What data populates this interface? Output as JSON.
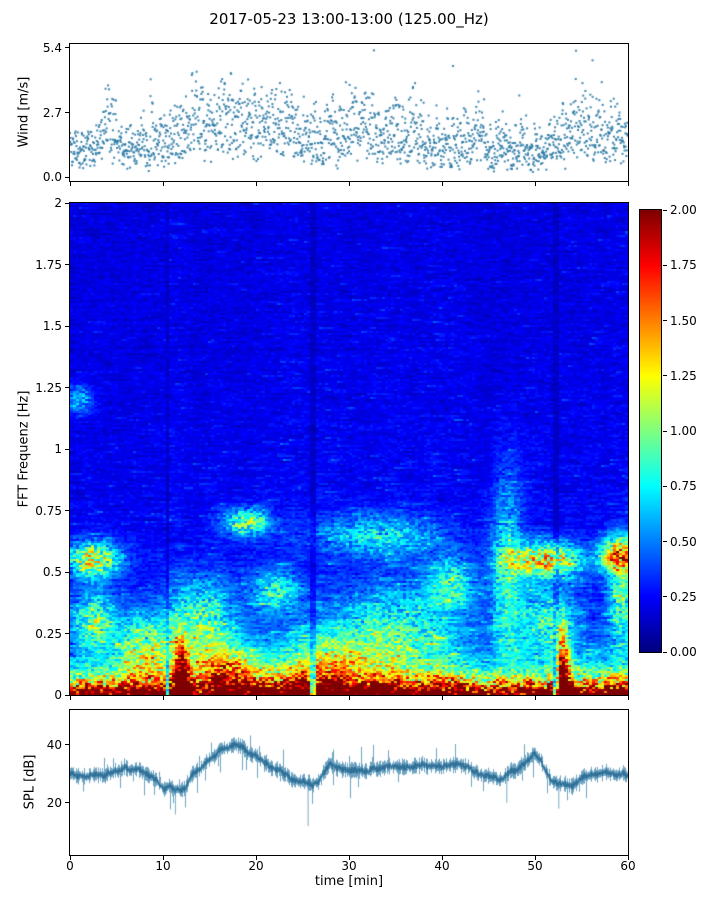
{
  "title": "2017-05-23 13:00-13:00 (125.00_Hz)",
  "xlabel": "time [min]",
  "colorbar": {
    "colormap": "jet",
    "vmin": 0,
    "vmax": 2,
    "tick_values": [
      2.0,
      1.75,
      1.5,
      1.25,
      1.0,
      0.75,
      0.5,
      0.25,
      0.0
    ],
    "tick_labels": [
      "2.00",
      "1.75",
      "1.50",
      "1.25",
      "1.00",
      "0.75",
      "0.50",
      "0.25",
      "0.00"
    ]
  },
  "chart_data": [
    {
      "id": "wind",
      "type": "scatter",
      "ylabel": "Wind [m/s]",
      "xlim": [
        0,
        60
      ],
      "ylim": [
        -0.15,
        5.55
      ],
      "ytick_values": [
        0.0,
        2.7,
        5.4
      ],
      "ytick_labels": [
        "0.0",
        "2.7",
        "5.4"
      ],
      "marker_color": "#2b7aa5",
      "n_points": 1900,
      "seed": 42,
      "envelope_step_min": 5,
      "envelope_mean_mps": [
        1.3,
        1.1,
        1.6,
        2.4,
        2.2,
        1.6,
        1.7,
        2.0,
        1.5,
        1.4,
        1.2,
        2.0,
        1.8
      ],
      "bursts": [
        {
          "t": 4.2,
          "tw": 0.6,
          "amp": 2.4
        },
        {
          "t": 13.5,
          "tw": 0.5,
          "amp": 1.5
        },
        {
          "t": 23.0,
          "tw": 0.8,
          "amp": 1.7
        },
        {
          "t": 31.5,
          "tw": 0.6,
          "amp": 1.5
        },
        {
          "t": 44.0,
          "tw": 0.5,
          "amp": 1.2
        }
      ]
    },
    {
      "id": "spectrogram",
      "type": "heatmap",
      "ylabel": "FFT Frequenz [Hz]",
      "xlim": [
        0,
        60
      ],
      "ylim": [
        0,
        2
      ],
      "ytick_values": [
        0,
        0.25,
        0.5,
        0.75,
        1,
        1.25,
        1.5,
        1.75,
        2
      ],
      "ytick_labels": [
        "0",
        "0.25",
        "0.5",
        "0.75",
        "1",
        "1.25",
        "1.5",
        "1.75",
        "2"
      ],
      "colormap": "jet",
      "vmin": 0,
      "vmax": 2,
      "seed": 7,
      "background_level": 0.15,
      "low_band_amp": 2.4,
      "low_band_scale_hz": 0.06,
      "dark_columns": [
        10.5,
        26.2,
        52.3
      ],
      "pattern_notes": "mostly deep blue background 0.1-0.3; strong red/orange band below 0.08 Hz across all times; cyan-green patches mainly below 0.7 Hz",
      "events": [
        {
          "t": 2.5,
          "f": 0.55,
          "tw": 2.0,
          "fw": 0.05,
          "amp": 1.0
        },
        {
          "t": 2.5,
          "f": 0.3,
          "tw": 1.6,
          "fw": 0.08,
          "amp": 0.7
        },
        {
          "t": 1.0,
          "f": 1.2,
          "tw": 1.0,
          "fw": 0.04,
          "amp": 0.45
        },
        {
          "t": 8.0,
          "f": 0.18,
          "tw": 2.2,
          "fw": 0.1,
          "amp": 0.75
        },
        {
          "t": 12.0,
          "f": 0.06,
          "tw": 0.5,
          "fw": 0.1,
          "amp": 1.6
        },
        {
          "t": 14.0,
          "f": 0.3,
          "tw": 2.6,
          "fw": 0.12,
          "amp": 0.65
        },
        {
          "t": 17.0,
          "f": 0.1,
          "tw": 2.6,
          "fw": 0.08,
          "amp": 0.85
        },
        {
          "t": 19.0,
          "f": 0.7,
          "tw": 1.8,
          "fw": 0.04,
          "amp": 0.8
        },
        {
          "t": 22.0,
          "f": 0.42,
          "tw": 1.8,
          "fw": 0.06,
          "amp": 0.55
        },
        {
          "t": 28.0,
          "f": 0.12,
          "tw": 3.5,
          "fw": 0.1,
          "amp": 0.6
        },
        {
          "t": 33.0,
          "f": 0.65,
          "tw": 4.5,
          "fw": 0.06,
          "amp": 0.5
        },
        {
          "t": 35.0,
          "f": 0.25,
          "tw": 5.0,
          "fw": 0.14,
          "amp": 0.5
        },
        {
          "t": 41.0,
          "f": 0.45,
          "tw": 1.8,
          "fw": 0.08,
          "amp": 0.55
        },
        {
          "t": 47.0,
          "f": 0.5,
          "tw": 1.2,
          "fw": 0.28,
          "amp": 0.55
        },
        {
          "t": 51.0,
          "f": 0.55,
          "tw": 2.8,
          "fw": 0.05,
          "amp": 1.05
        },
        {
          "t": 51.5,
          "f": 0.3,
          "tw": 2.2,
          "fw": 0.1,
          "amp": 0.55
        },
        {
          "t": 53.0,
          "f": 0.06,
          "tw": 0.5,
          "fw": 0.12,
          "amp": 1.7
        },
        {
          "t": 59.0,
          "f": 0.57,
          "tw": 1.4,
          "fw": 0.05,
          "amp": 1.15
        },
        {
          "t": 59.3,
          "f": 0.4,
          "tw": 1.0,
          "fw": 0.14,
          "amp": 0.65
        }
      ]
    },
    {
      "id": "spl",
      "type": "line",
      "ylabel": "SPL [dB]",
      "xlim": [
        0,
        60
      ],
      "ylim": [
        2,
        52
      ],
      "ytick_values": [
        20,
        40
      ],
      "ytick_labels": [
        "20",
        "40"
      ],
      "xtick_values": [
        0,
        10,
        20,
        30,
        40,
        50,
        60
      ],
      "xtick_labels": [
        "0",
        "10",
        "20",
        "30",
        "40",
        "50",
        "60"
      ],
      "line_color": "#3e86ad",
      "core_color": "#2e6f96",
      "seed": 11,
      "envelope_step_min": 2,
      "envelope_db": [
        30,
        28,
        30,
        32,
        31,
        26,
        25,
        33,
        39,
        40,
        36,
        32,
        28,
        26,
        33,
        32,
        31,
        33,
        32,
        33,
        31,
        34,
        30,
        27,
        32,
        36,
        27,
        26,
        30,
        31,
        30
      ],
      "noise_band_db": 3.5,
      "spikes": [
        {
          "t": 11.3,
          "v": 16
        },
        {
          "t": 25.6,
          "v": 12
        },
        {
          "t": 47.0,
          "v": 20
        },
        {
          "t": 52.6,
          "v": 18
        }
      ]
    }
  ]
}
